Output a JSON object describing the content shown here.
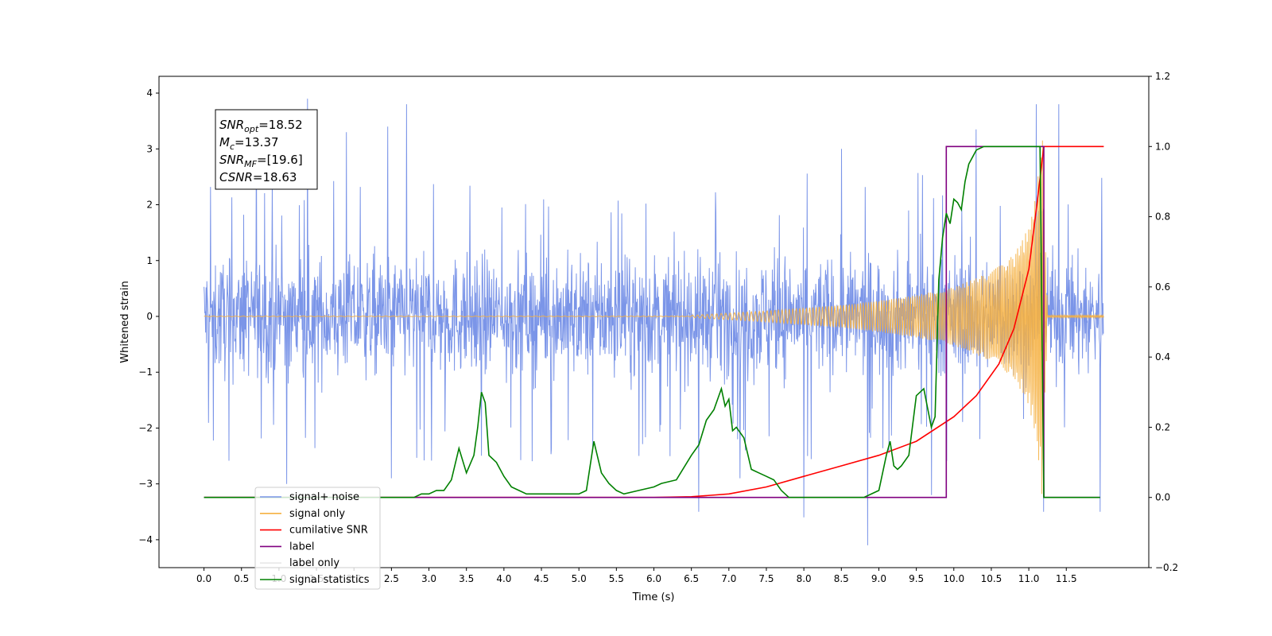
{
  "chart_data": {
    "type": "line",
    "xlabel": "Time (s)",
    "ylabel": "Whitened strain",
    "xlim": [
      -0.6,
      12.6
    ],
    "ylim": [
      -4.5,
      4.3
    ],
    "y2lim": [
      -0.2,
      1.2
    ],
    "x_ticks": [
      "0.0",
      "0.5",
      "1.0",
      "1.5",
      "2.0",
      "2.5",
      "3.0",
      "3.5",
      "4.0",
      "4.5",
      "5.0",
      "5.5",
      "6.0",
      "6.5",
      "7.0",
      "7.5",
      "8.0",
      "8.5",
      "9.0",
      "9.5",
      "10.0",
      "10.5",
      "11.0",
      "11.5"
    ],
    "y_ticks": [
      "4",
      "3",
      "2",
      "1",
      "0",
      "−1",
      "−2",
      "−3",
      "−4"
    ],
    "y2_ticks": [
      "1.2",
      "1.0",
      "0.8",
      "0.6",
      "0.4",
      "0.2",
      "0.0",
      "−0.2"
    ],
    "annotation": {
      "snr_opt": {
        "name": "SNR",
        "sub": "opt",
        "value": "=18.52"
      },
      "mc": {
        "name": "M",
        "sub": "c",
        "value": "=13.37"
      },
      "snr_mf": {
        "name": "SNR",
        "sub": "MF",
        "value": "=[19.6]"
      },
      "csnr": {
        "name": "CSNR",
        "value": "=18.63"
      }
    },
    "legend": {
      "placement": "lower-left",
      "entries": [
        "signal+ noise",
        "signal only",
        "cumilative SNR",
        "label",
        "label only",
        "signal statistics"
      ]
    },
    "series": [
      {
        "name": "signal+ noise",
        "axis": "left",
        "color": "#7b95e8",
        "style": "noise",
        "x_range": [
          0.0,
          12.0
        ],
        "typical_band": [
          -1.6,
          1.7
        ],
        "spikes": [
          {
            "x": 1.38,
            "y": 3.9
          },
          {
            "x": 2.7,
            "y": 3.8
          },
          {
            "x": 11.1,
            "y": 3.8
          },
          {
            "x": 11.4,
            "y": 3.8
          },
          {
            "x": 0.7,
            "y": 3.5
          },
          {
            "x": 2.45,
            "y": 3.4
          },
          {
            "x": 1.9,
            "y": 3.3
          },
          {
            "x": 10.3,
            "y": 3.35
          },
          {
            "x": 6.6,
            "y": 3.05
          },
          {
            "x": 8.5,
            "y": 3.0
          },
          {
            "x": 1.1,
            "y": -3.0
          },
          {
            "x": 6.6,
            "y": -3.5
          },
          {
            "x": 8.85,
            "y": -4.1
          },
          {
            "x": 8.0,
            "y": -3.6
          },
          {
            "x": 11.2,
            "y": -3.5
          },
          {
            "x": 11.95,
            "y": -3.5
          },
          {
            "x": 9.7,
            "y": -3.2
          },
          {
            "x": 2.5,
            "y": -2.9
          },
          {
            "x": 7.15,
            "y": -2.9
          },
          {
            "x": 5.8,
            "y": -2.5
          }
        ]
      },
      {
        "name": "signal only",
        "axis": "left",
        "color": "#f5b041",
        "style": "chirp",
        "x_range": [
          0.0,
          12.0
        ],
        "envelope_x": [
          6.5,
          7.0,
          7.5,
          8.0,
          8.5,
          9.0,
          9.5,
          10.0,
          10.5,
          10.8,
          11.0,
          11.1,
          11.18,
          11.25
        ],
        "envelope_y": [
          0.02,
          0.06,
          0.1,
          0.15,
          0.2,
          0.28,
          0.38,
          0.52,
          0.8,
          1.1,
          1.6,
          2.2,
          3.3,
          0.05
        ]
      },
      {
        "name": "cumilative SNR",
        "axis": "right",
        "color": "#ff0000",
        "x": [
          0.0,
          6.0,
          6.5,
          7.0,
          7.5,
          8.0,
          8.5,
          9.0,
          9.5,
          10.0,
          10.3,
          10.6,
          10.8,
          11.0,
          11.1,
          11.2,
          12.0
        ],
        "y": [
          0.0,
          0.0,
          0.002,
          0.01,
          0.03,
          0.06,
          0.09,
          0.12,
          0.16,
          0.23,
          0.29,
          0.38,
          0.48,
          0.65,
          0.82,
          1.0,
          1.0
        ]
      },
      {
        "name": "label",
        "axis": "right",
        "color": "#800080",
        "x": [
          0.0,
          9.9,
          9.9,
          11.2,
          11.2,
          11.95
        ],
        "y": [
          0.0,
          0.0,
          1.0,
          1.0,
          0.0,
          0.0
        ]
      },
      {
        "name": "signal statistics",
        "axis": "right",
        "color": "#008000",
        "x": [
          0.0,
          2.0,
          2.8,
          2.9,
          3.0,
          3.1,
          3.2,
          3.3,
          3.4,
          3.5,
          3.6,
          3.65,
          3.7,
          3.75,
          3.8,
          3.9,
          4.0,
          4.1,
          4.2,
          4.3,
          4.5,
          4.8,
          5.0,
          5.1,
          5.2,
          5.3,
          5.4,
          5.5,
          5.6,
          5.8,
          6.0,
          6.1,
          6.3,
          6.5,
          6.6,
          6.7,
          6.8,
          6.9,
          6.95,
          7.0,
          7.05,
          7.1,
          7.2,
          7.3,
          7.4,
          7.5,
          7.6,
          7.7,
          7.8,
          8.0,
          8.8,
          9.0,
          9.1,
          9.15,
          9.2,
          9.25,
          9.3,
          9.4,
          9.5,
          9.6,
          9.7,
          9.75,
          9.8,
          9.85,
          9.9,
          9.95,
          10.0,
          10.05,
          10.1,
          10.15,
          10.2,
          10.3,
          10.4,
          10.5,
          11.0,
          11.1,
          11.15,
          11.2,
          11.95
        ],
        "y": [
          0.0,
          0.0,
          0.0,
          0.01,
          0.01,
          0.02,
          0.02,
          0.05,
          0.14,
          0.07,
          0.12,
          0.2,
          0.3,
          0.27,
          0.12,
          0.1,
          0.06,
          0.03,
          0.02,
          0.01,
          0.01,
          0.01,
          0.01,
          0.02,
          0.16,
          0.07,
          0.04,
          0.02,
          0.01,
          0.02,
          0.03,
          0.04,
          0.05,
          0.12,
          0.15,
          0.22,
          0.25,
          0.31,
          0.26,
          0.28,
          0.19,
          0.2,
          0.17,
          0.08,
          0.07,
          0.06,
          0.05,
          0.02,
          0.0,
          0.0,
          0.0,
          0.02,
          0.12,
          0.16,
          0.09,
          0.08,
          0.09,
          0.12,
          0.29,
          0.31,
          0.2,
          0.23,
          0.62,
          0.74,
          0.81,
          0.78,
          0.85,
          0.84,
          0.82,
          0.9,
          0.95,
          0.99,
          1.0,
          1.0,
          1.0,
          1.0,
          1.0,
          0.0,
          0.0
        ]
      }
    ]
  }
}
